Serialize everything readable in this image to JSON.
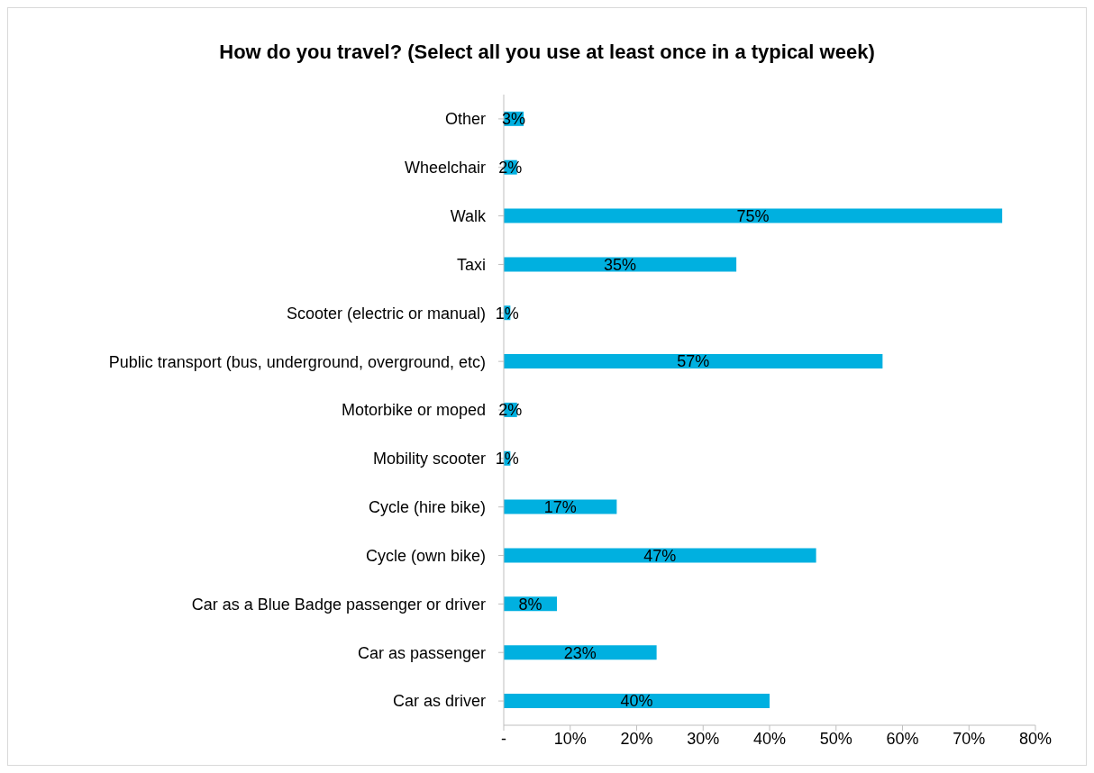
{
  "chart_data": {
    "type": "bar",
    "orientation": "horizontal",
    "title": "How do you travel? (Select all you use at least once in a typical week)",
    "categories": [
      "Other",
      "Wheelchair",
      "Walk",
      "Taxi",
      "Scooter (electric or manual)",
      "Public transport (bus, underground, overground, etc)",
      "Motorbike or moped",
      "Mobility scooter",
      "Cycle (hire bike)",
      "Cycle (own bike)",
      "Car as a Blue Badge passenger or driver",
      "Car as passenger",
      "Car as driver"
    ],
    "values": [
      3,
      2,
      75,
      35,
      1,
      57,
      2,
      1,
      17,
      47,
      8,
      23,
      40
    ],
    "value_labels": [
      "3%",
      "2%",
      "75%",
      "35%",
      "1%",
      "57%",
      "2%",
      "1%",
      "17%",
      "47%",
      "8%",
      "23%",
      "40%"
    ],
    "color": "#00b0e0",
    "xlim": [
      0,
      80
    ],
    "xticks": [
      {
        "value": 0,
        "label": "-"
      },
      {
        "value": 10,
        "label": "10%"
      },
      {
        "value": 20,
        "label": "20%"
      },
      {
        "value": 30,
        "label": "30%"
      },
      {
        "value": 40,
        "label": "40%"
      },
      {
        "value": 50,
        "label": "50%"
      },
      {
        "value": 60,
        "label": "60%"
      },
      {
        "value": 70,
        "label": "70%"
      },
      {
        "value": 80,
        "label": "80%"
      }
    ],
    "grid": false,
    "legend": false
  }
}
